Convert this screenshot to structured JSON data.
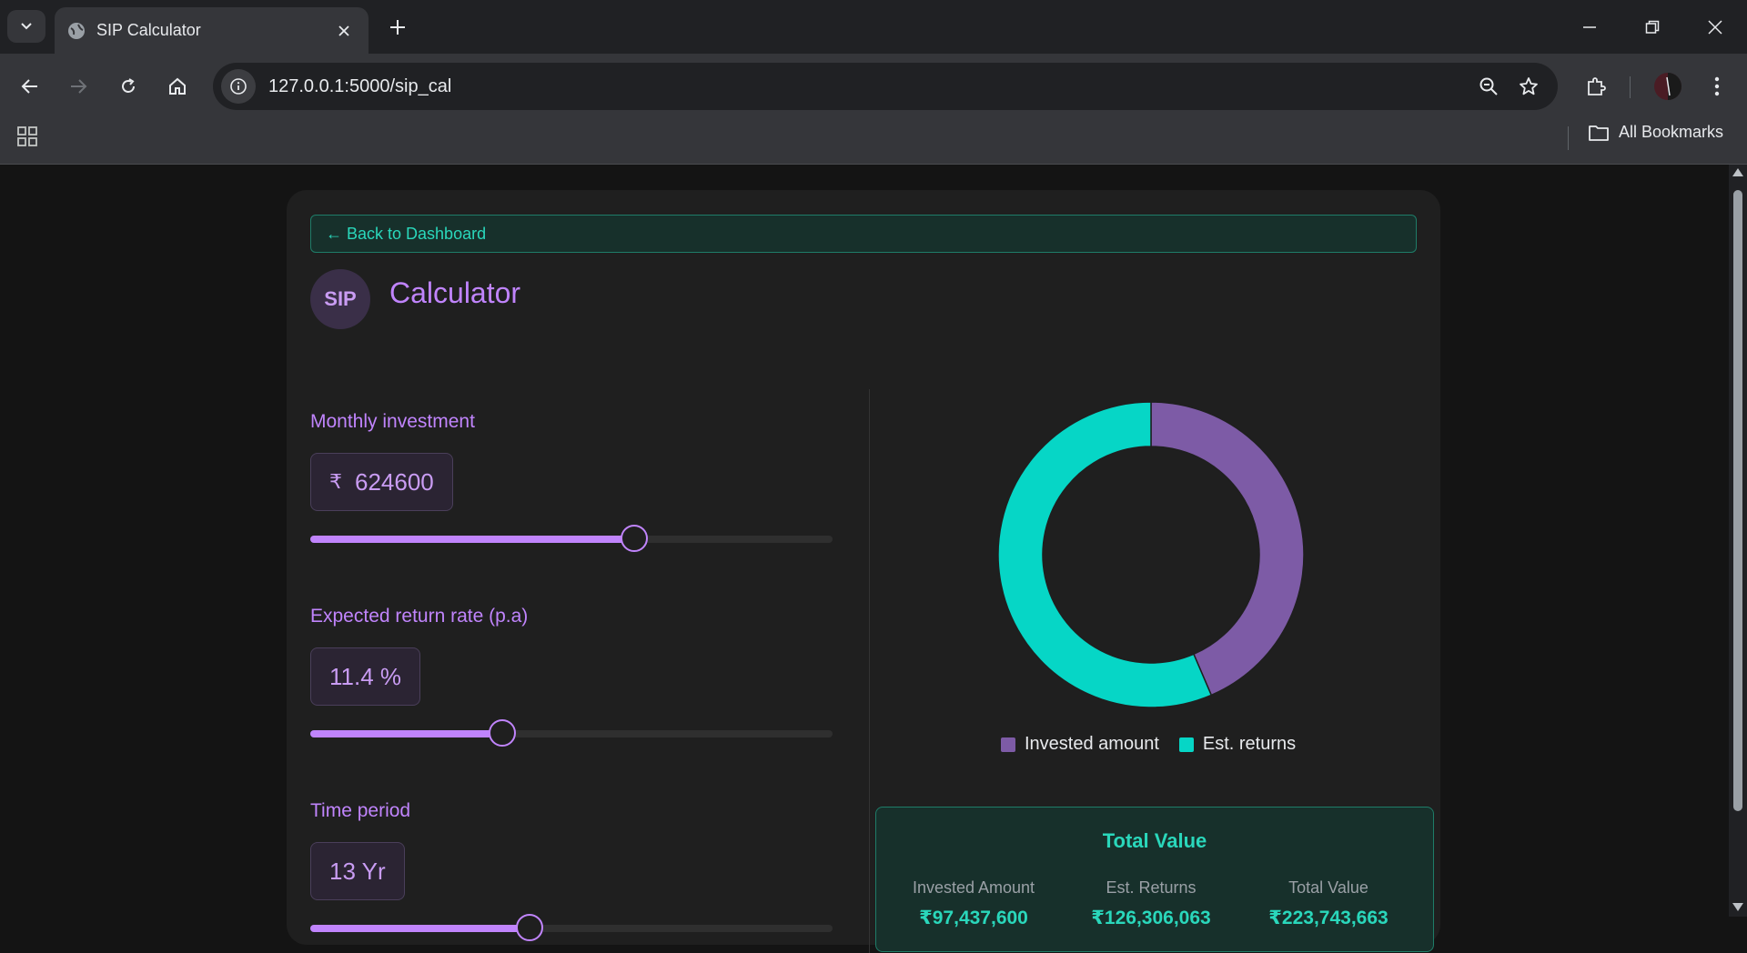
{
  "browser": {
    "tab_title": "SIP Calculator",
    "url": "127.0.0.1:5000/sip_cal",
    "bookmarks_label": "All Bookmarks"
  },
  "page": {
    "back_label": "← Back to Dashboard",
    "badge": "SIP",
    "title": "Calculator"
  },
  "inputs": {
    "monthly": {
      "label": "Monthly investment",
      "currency": "₹",
      "value": "624600",
      "slider_fraction": 0.62
    },
    "rate": {
      "label": "Expected return rate (p.a)",
      "value": "11.4 %",
      "slider_fraction": 0.367
    },
    "time": {
      "label": "Time period",
      "value": "13 Yr"
    }
  },
  "chart_data": {
    "type": "pie",
    "categories": [
      "Invested amount",
      "Est. returns"
    ],
    "values": [
      97437600,
      126306063
    ],
    "colors": [
      "#7d5ba6",
      "#06d6c6"
    ]
  },
  "summary": {
    "title": "Total Value",
    "columns": [
      {
        "label": "Invested Amount",
        "value": "₹97,437,600"
      },
      {
        "label": "Est. Returns",
        "value": "₹126,306,063"
      },
      {
        "label": "Total Value",
        "value": "₹223,743,663"
      }
    ]
  }
}
